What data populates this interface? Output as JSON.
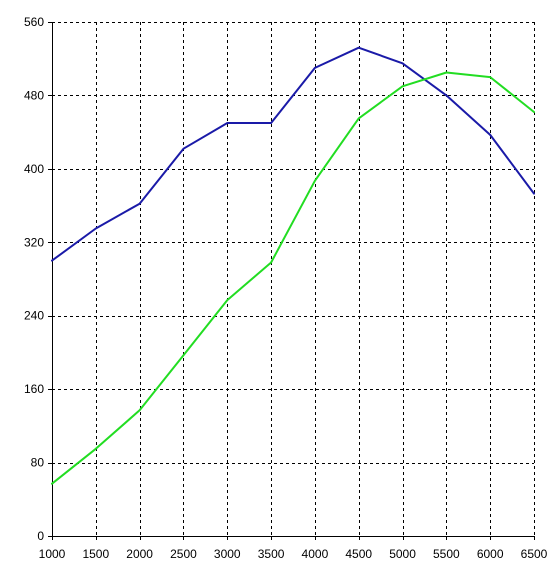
{
  "chart_data": {
    "type": "line",
    "title": "",
    "xlabel": "",
    "ylabel": "",
    "x": [
      1000,
      1500,
      2000,
      2500,
      3000,
      3500,
      4000,
      4500,
      5000,
      5500,
      6000,
      6500
    ],
    "xlim": [
      1000,
      6500
    ],
    "ylim": [
      0,
      560
    ],
    "x_ticks": [
      "1000",
      "1500",
      "2000",
      "2500",
      "3000",
      "3500",
      "4000",
      "4500",
      "5000",
      "5500",
      "6000",
      "6500"
    ],
    "y_ticks": [
      "0",
      "80",
      "160",
      "240",
      "320",
      "400",
      "480",
      "560"
    ],
    "grid": true,
    "legend": "none",
    "series": [
      {
        "color": "#1a1aa8",
        "values": [
          300,
          335,
          362,
          422,
          450,
          450,
          510,
          532,
          515,
          480,
          437,
          373
        ]
      },
      {
        "color": "#22dd22",
        "values": [
          57,
          95,
          137,
          197,
          257,
          298,
          387,
          455,
          490,
          505,
          500,
          462
        ]
      }
    ]
  }
}
